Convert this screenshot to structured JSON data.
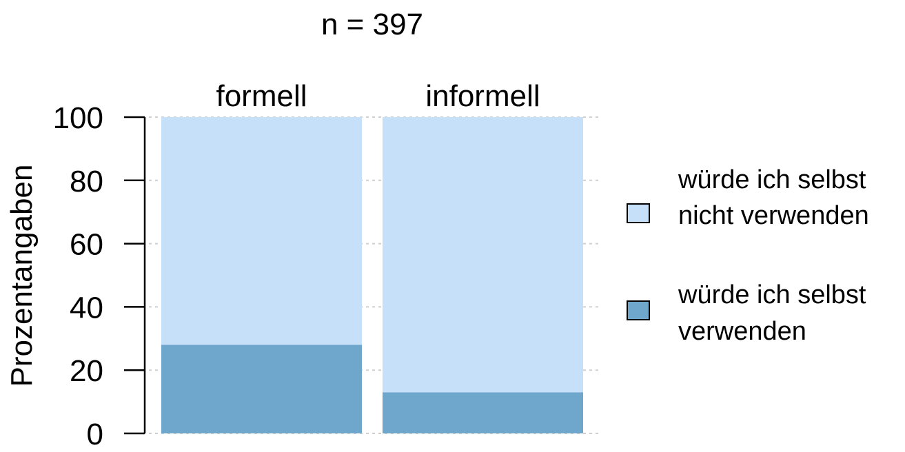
{
  "chart_data": {
    "type": "bar",
    "stacked": true,
    "title": "n = 397",
    "ylabel": "Prozentangaben",
    "xlabel": "",
    "categories": [
      "formell",
      "informell"
    ],
    "ylim": [
      0,
      100
    ],
    "yticks": [
      "0",
      "20",
      "40",
      "60",
      "80",
      "100"
    ],
    "grid": true,
    "legend_position": "right",
    "series": [
      {
        "name": "würde ich selbst verwenden",
        "legend_lines": [
          "würde ich selbst",
          "verwenden"
        ],
        "color": "#6fa6cc",
        "values": [
          28,
          13
        ]
      },
      {
        "name": "würde ich selbst nicht verwenden",
        "legend_lines": [
          "würde ich selbst",
          "nicht verwenden"
        ],
        "color": "#c6e0fa",
        "values": [
          72,
          87
        ]
      }
    ],
    "legend_order": [
      1,
      0
    ]
  }
}
